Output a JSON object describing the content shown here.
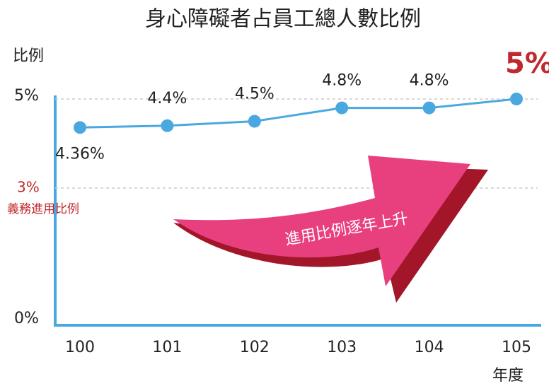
{
  "chart_data": {
    "type": "line",
    "title": "身心障礙者占員工總人數比例",
    "y_label": "比例",
    "x_label": "年度",
    "categories": [
      "100",
      "101",
      "102",
      "103",
      "104",
      "105"
    ],
    "series": [
      {
        "name": "比例",
        "color": "#4aa8e0",
        "values": [
          4.36,
          4.4,
          4.5,
          4.8,
          4.8,
          5
        ],
        "value_labels": [
          "4.36%",
          "4.4%",
          "4.5%",
          "4.8%",
          "4.8%",
          "5%"
        ]
      }
    ],
    "ylim": [
      0,
      5
    ],
    "yticks": [
      {
        "value": 0,
        "label": "0%"
      },
      {
        "value": 5,
        "label": "5%"
      }
    ],
    "reference_line": {
      "value": 3,
      "label": "3%",
      "text": "義務進用比例",
      "color": "#c0282d"
    },
    "emphasis_color": "#c0282d",
    "axis_color": "#4aa8e0",
    "grid": true,
    "annotation": "進用比例逐年上升"
  }
}
